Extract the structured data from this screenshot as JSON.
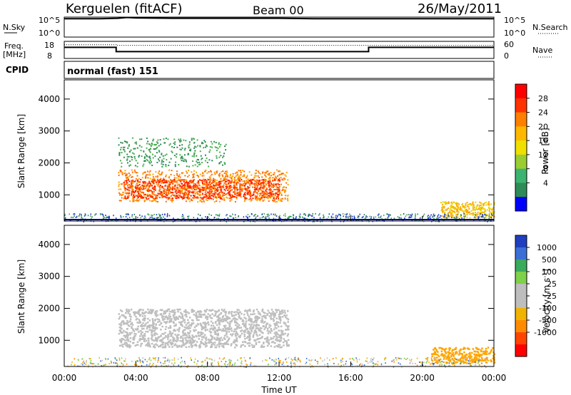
{
  "header": {
    "station": "Kerguelen (fitACF)",
    "beam": "Beam 00",
    "date": "26/May/2011"
  },
  "chart_data": [
    {
      "type": "line",
      "panel": "noise",
      "left_label": "N.Sky",
      "right_label": "N.Search",
      "left_ticks": [
        "10^5",
        "10^0"
      ],
      "right_ticks": [
        "10^5",
        "10^0"
      ],
      "x": [
        0,
        2,
        3,
        3.5,
        4,
        6,
        8,
        10,
        12,
        14,
        16,
        18,
        20,
        22,
        24
      ],
      "series": [
        {
          "name": "N.Sky",
          "values": [
            4.6,
            4.6,
            4.7,
            4.9,
            4.8,
            4.7,
            4.7,
            4.7,
            4.7,
            4.6,
            4.6,
            4.6,
            4.6,
            4.6,
            4.6
          ]
        }
      ],
      "ylim": [
        0,
        5
      ]
    },
    {
      "type": "line",
      "panel": "frequency",
      "left_label": "Freq.",
      "left_unit": "[MHz]",
      "right_label": "Nave",
      "left_ticks": [
        "18",
        "8"
      ],
      "right_ticks": [
        "60",
        "0"
      ],
      "freq_ylim": [
        8,
        18
      ],
      "nave_ylim": [
        0,
        60
      ],
      "freq": {
        "x": [
          0,
          2.9,
          2.9,
          17,
          17,
          24
        ],
        "values": [
          14.5,
          14.5,
          12.0,
          12.0,
          14.5,
          14.5
        ]
      },
      "nave": {
        "x": [
          0,
          2.9,
          2.9,
          24
        ],
        "values": [
          48,
          48,
          46,
          46
        ]
      }
    },
    {
      "type": "table",
      "panel": "cpid",
      "label": "CPID",
      "text": "normal (fast) 151"
    },
    {
      "type": "heatmap",
      "panel": "power",
      "ylabel": "Slant Range [km]",
      "xlabel": "",
      "ylim": [
        180,
        4600
      ],
      "xlim": [
        0,
        24
      ],
      "yticks": [
        "1000",
        "2000",
        "3000",
        "4000"
      ],
      "colorbar_label": "Power [dB]",
      "colorbar_ticks": [
        "28",
        "24",
        "20",
        "16",
        "12",
        "8",
        "4"
      ],
      "colorbar_colors": [
        "#ff0000",
        "#ff3300",
        "#ff7f00",
        "#ffb800",
        "#f0e000",
        "#9acd32",
        "#3cb371",
        "#2e8b57",
        "#0000ff"
      ],
      "regions": [
        {
          "name": "main-echo",
          "x": [
            3.0,
            12.5
          ],
          "y": [
            800,
            1800
          ],
          "level": 22
        },
        {
          "name": "main-core",
          "x": [
            3.3,
            12.0
          ],
          "y": [
            900,
            1500
          ],
          "level": 26
        },
        {
          "name": "upper-patch",
          "x": [
            3.0,
            9.0
          ],
          "y": [
            1900,
            2800
          ],
          "level": 10
        },
        {
          "name": "late-echo",
          "x": [
            21.0,
            24.0
          ],
          "y": [
            300,
            800
          ],
          "level": 18
        }
      ],
      "ground_scatter_floor_km": 250
    },
    {
      "type": "heatmap",
      "panel": "velocity",
      "ylabel": "Slant Range [km]",
      "xlabel": "Time UT",
      "ylim": [
        180,
        4600
      ],
      "xlim": [
        0,
        24
      ],
      "yticks": [
        "1000",
        "2000",
        "3000",
        "4000"
      ],
      "xticks": [
        "00:00",
        "04:00",
        "08:00",
        "12:00",
        "16:00",
        "20:00",
        "00:00"
      ],
      "xtick_values": [
        0,
        4,
        8,
        12,
        16,
        20,
        24
      ],
      "colorbar_label": "Velocity [m s^-1]",
      "colorbar_ticks": [
        "1000",
        "500",
        "100",
        "25",
        "-25",
        "-100",
        "-500",
        "-1000"
      ],
      "colorbar_colors": [
        "#1f3fbf",
        "#3c6fd6",
        "#3aaa5c",
        "#7fd04a",
        "#bebebe",
        "#bebebe",
        "#f0b400",
        "#ff8c00",
        "#ff4500",
        "#ff0000"
      ],
      "regions": [
        {
          "name": "ground-scatter",
          "x": [
            3.0,
            12.5
          ],
          "y": [
            800,
            2000
          ],
          "color": "#bebebe"
        },
        {
          "name": "late-echo",
          "x": [
            20.5,
            24.0
          ],
          "y": [
            300,
            800
          ],
          "color": "#ffa500"
        }
      ]
    }
  ]
}
